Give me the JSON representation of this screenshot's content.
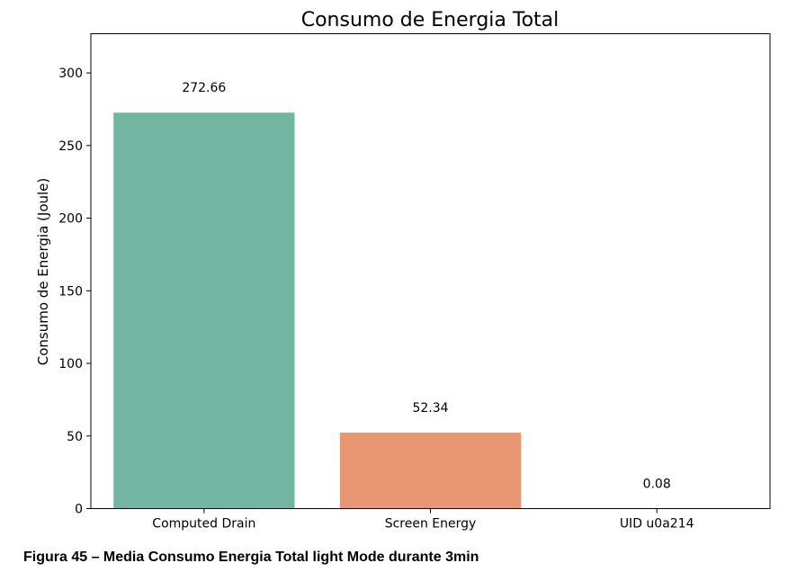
{
  "chart_data": {
    "type": "bar",
    "title": "Consumo de Energia Total",
    "xlabel": "",
    "ylabel": "Consumo de Energia (Joule)",
    "categories": [
      "Computed Drain",
      "Screen Energy",
      "UID u0a214"
    ],
    "values": [
      272.66,
      52.34,
      0.08
    ],
    "data_labels": [
      "272.66",
      "52.34",
      "0.08"
    ],
    "colors": [
      "#72b6a1",
      "#e99675",
      "#8da0cb"
    ],
    "ylim": [
      0,
      327
    ],
    "yticks": [
      0,
      50,
      100,
      150,
      200,
      250,
      300
    ],
    "grid": false,
    "legend": "none"
  },
  "caption": "Figura 45 – Media Consumo Energia Total light Mode durante 3min"
}
